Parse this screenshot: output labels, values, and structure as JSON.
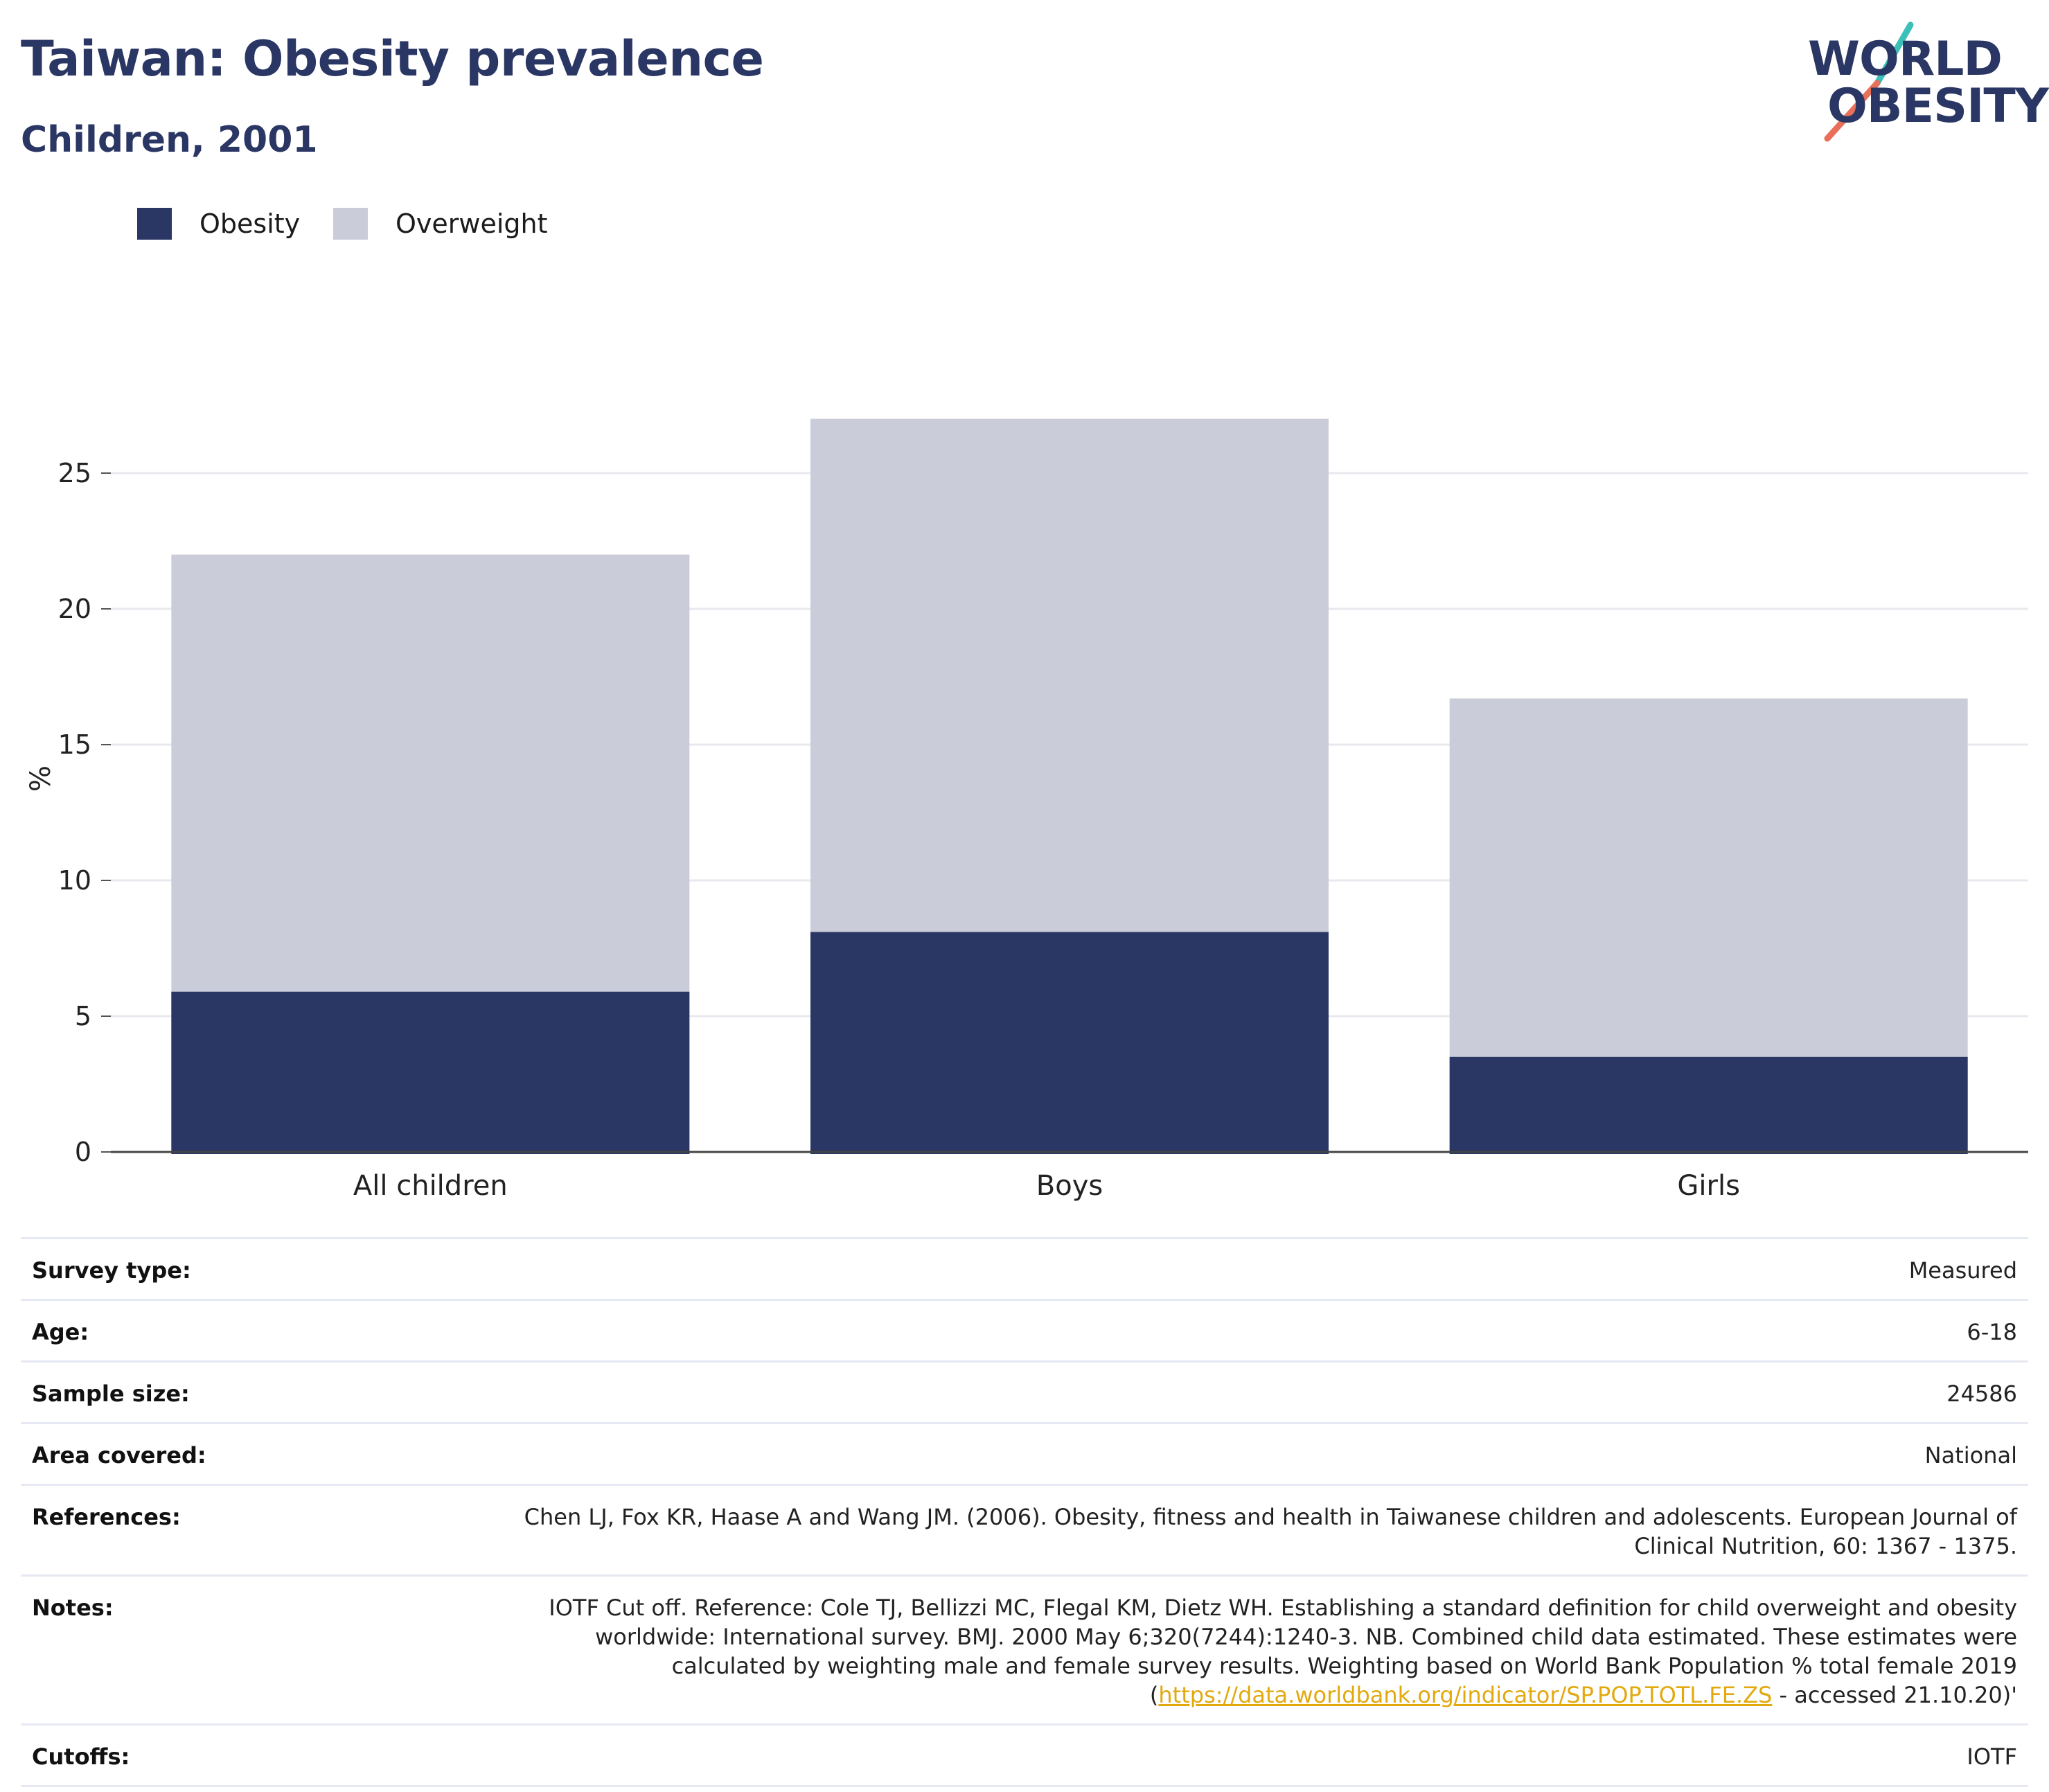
{
  "header": {
    "title": "Taiwan: Obesity prevalence",
    "subtitle": "Children, 2001"
  },
  "logo": {
    "line1": "WORLD",
    "line2": "OBESITY"
  },
  "legend": {
    "items": [
      {
        "label": "Obesity",
        "color": "#2a3663"
      },
      {
        "label": "Overweight",
        "color": "#cacdd9"
      }
    ]
  },
  "chart_data": {
    "type": "bar",
    "stacked": false,
    "overlaid": true,
    "categories": [
      "All children",
      "Boys",
      "Girls"
    ],
    "series": [
      {
        "name": "Overweight",
        "values": [
          22,
          27,
          16.7
        ],
        "color": "#cacdd9"
      },
      {
        "name": "Obesity",
        "values": [
          5.9,
          8.1,
          3.5
        ],
        "color": "#2a3663"
      }
    ],
    "ylabel": "%",
    "ylim": [
      0,
      27.5
    ],
    "yticks": [
      0,
      5,
      10,
      15,
      20,
      25
    ],
    "grid": true,
    "legend_position": "top-left"
  },
  "metadata": {
    "rows": [
      {
        "label": "Survey type:",
        "value": "Measured"
      },
      {
        "label": "Age:",
        "value": "6-18"
      },
      {
        "label": "Sample size:",
        "value": "24586"
      },
      {
        "label": "Area covered:",
        "value": "National"
      },
      {
        "label": "References:",
        "value": "Chen LJ, Fox KR, Haase A and Wang JM. (2006). Obesity, fitness and health in Taiwanese children and adolescents. European Journal of Clinical Nutrition, 60: 1367 - 1375."
      },
      {
        "label": "Notes:",
        "value": "IOTF Cut off. Reference: Cole TJ, Bellizzi MC, Flegal KM, Dietz WH. Establishing a standard definition for child overweight and obesity worldwide: International survey. BMJ. 2000 May 6;320(7244):1240-3. NB. Combined child data estimated. These estimates were calculated by weighting male and female survey results. Weighting based on World Bank Population % total female 2019 (",
        "link": "https://data.worldbank.org/indicator/SP.POP.TOTL.FE.ZS",
        "value_after": " - accessed 21.10.20)'"
      },
      {
        "label": "Cutoffs:",
        "value": "IOTF"
      }
    ]
  }
}
